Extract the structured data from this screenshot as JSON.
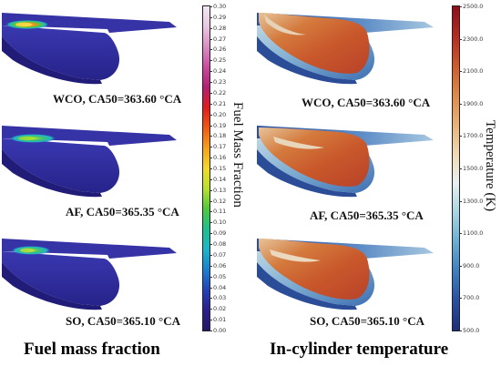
{
  "left_panels": [
    {
      "caption": "WCO, CA50=363.60 °CA"
    },
    {
      "caption": "AF, CA50=365.35 °CA"
    },
    {
      "caption": "SO, CA50=365.10 °CA"
    }
  ],
  "right_panels": [
    {
      "caption": "WCO, CA50=363.60 °CA"
    },
    {
      "caption": "AF, CA50=365.35 °CA"
    },
    {
      "caption": "SO, CA50=365.10 °CA"
    }
  ],
  "colorbar_fuel": {
    "title": "Fuel Mass Fraction",
    "ticks": [
      "0.30",
      "0.29",
      "0.28",
      "0.27",
      "0.26",
      "0.25",
      "0.24",
      "0.23",
      "0.22",
      "0.21",
      "0.20",
      "0.19",
      "0.18",
      "0.17",
      "0.16",
      "0.15",
      "0.14",
      "0.13",
      "0.12",
      "0.11",
      "0.10",
      "0.09",
      "0.08",
      "0.07",
      "0.06",
      "0.05",
      "0.04",
      "0.03",
      "0.02",
      "0.01",
      "0.00"
    ],
    "colors": [
      "#f1e8f2",
      "#e9c6e0",
      "#d98ec4",
      "#c94aa0",
      "#b31f72",
      "#e11d1d",
      "#f05a15",
      "#f5a21a",
      "#f3d92a",
      "#b7e12e",
      "#52c83e",
      "#1fbf8f",
      "#1db5c8",
      "#1a7fd1",
      "#2342b8",
      "#2b1e8a",
      "#241868"
    ]
  },
  "colorbar_temp": {
    "title": "Temperature (K)",
    "ticks": [
      "2500.0",
      "2300.0",
      "2100.0",
      "1900.0",
      "1700.0",
      "1500.0",
      "1300.0",
      "1100.0",
      "900.0",
      "700.0",
      "500.0"
    ],
    "colors": [
      "#8f0e1a",
      "#b52a22",
      "#cc5a2f",
      "#dc8a4a",
      "#e7b27a",
      "#efd9b4",
      "#e9f0f2",
      "#a9d4e2",
      "#6aaed3",
      "#3e7fbf",
      "#2a4fa0",
      "#1c2f7a"
    ]
  },
  "bottom_titles": {
    "left": "Fuel mass fraction",
    "right": "In-cylinder temperature"
  }
}
